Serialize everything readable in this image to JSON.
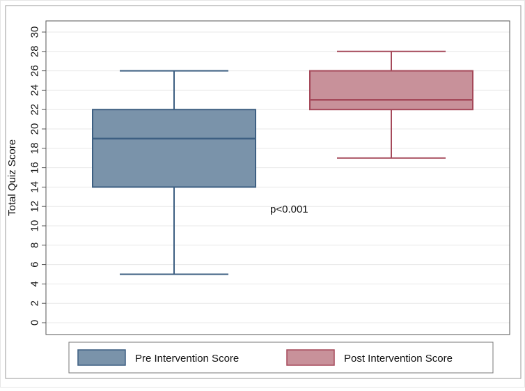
{
  "chart_data": {
    "type": "box",
    "title": "",
    "xlabel": "",
    "ylabel": "Total Quiz Score",
    "ylim": [
      0,
      30
    ],
    "yticks": [
      "0",
      "2",
      "4",
      "6",
      "8",
      "10",
      "12",
      "14",
      "16",
      "18",
      "20",
      "22",
      "24",
      "26",
      "28",
      "30"
    ],
    "grid": true,
    "legend_position": "bottom",
    "annotation": "p<0.001",
    "series": [
      {
        "name": "Pre Intervention Score",
        "color": "#7a93aa",
        "stroke": "#3d5f82",
        "min": 5,
        "q1": 14,
        "median": 19,
        "q3": 22,
        "max": 26
      },
      {
        "name": "Post Intervention Score",
        "color": "#c8919a",
        "stroke": "#a5495a",
        "min": 17,
        "q1": 22,
        "median": 23,
        "q3": 26,
        "max": 28
      }
    ]
  }
}
